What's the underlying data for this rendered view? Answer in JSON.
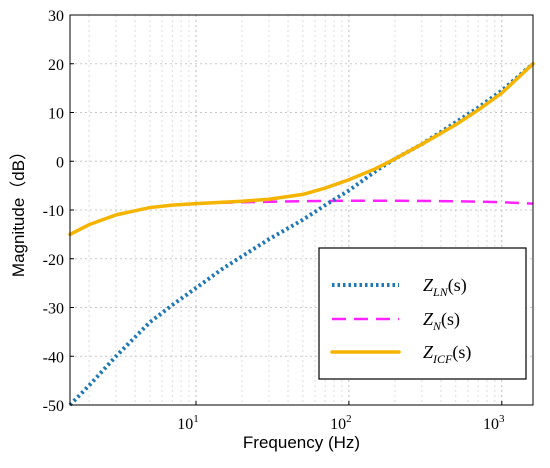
{
  "chart_data": {
    "type": "line",
    "xlabel": "Frequency  (Hz)",
    "ylabel": "Magnitude（dB）",
    "xscale": "log",
    "xlim": [
      1.5,
      1600
    ],
    "ylim": [
      -50,
      30
    ],
    "x_ticks": [
      {
        "value": 10,
        "base": "10",
        "exp": "1"
      },
      {
        "value": 100,
        "base": "10",
        "exp": "2"
      },
      {
        "value": 1000,
        "base": "10",
        "exp": "3"
      }
    ],
    "y_ticks": [
      30,
      20,
      10,
      0,
      -10,
      -20,
      -30,
      -40,
      -50
    ],
    "grid": true,
    "legend_position": "bottom-right",
    "series": [
      {
        "key": "zln",
        "name_main": "Z",
        "name_sub": "LN",
        "name_suffix": "(s)",
        "color": "#1f77b4",
        "style": "dotted",
        "x": [
          1.5,
          2,
          3,
          5,
          7,
          10,
          15,
          20,
          30,
          50,
          70,
          100,
          150,
          200,
          300,
          500,
          700,
          1000,
          1600
        ],
        "y": [
          -50,
          -46,
          -40,
          -33,
          -29.5,
          -26,
          -22,
          -19.5,
          -16,
          -12,
          -9,
          -6,
          -2,
          0.5,
          3.5,
          8,
          11,
          14.5,
          20
        ]
      },
      {
        "key": "zn",
        "name_main": "Z",
        "name_sub": "N",
        "name_suffix": "(s)",
        "color": "#ff22ff",
        "style": "dashed",
        "x": [
          1.5,
          2,
          3,
          5,
          7,
          10,
          20,
          50,
          100,
          200,
          500,
          1000,
          1600
        ],
        "y": [
          -15,
          -13,
          -11,
          -9.5,
          -9,
          -8.7,
          -8.4,
          -8.2,
          -8.1,
          -8.1,
          -8.2,
          -8.4,
          -8.7
        ]
      },
      {
        "key": "zicf",
        "name_main": "Z",
        "name_sub": "ICF",
        "name_suffix": "(s)",
        "color": "#f5b400",
        "style": "solid",
        "x": [
          1.5,
          2,
          3,
          5,
          7,
          10,
          20,
          30,
          50,
          70,
          100,
          150,
          200,
          300,
          500,
          700,
          1000,
          1600
        ],
        "y": [
          -15,
          -13,
          -11,
          -9.5,
          -9,
          -8.7,
          -8.2,
          -7.8,
          -6.8,
          -5.5,
          -3.8,
          -1.5,
          0.5,
          3.5,
          7.5,
          10.5,
          14,
          20
        ]
      }
    ]
  }
}
